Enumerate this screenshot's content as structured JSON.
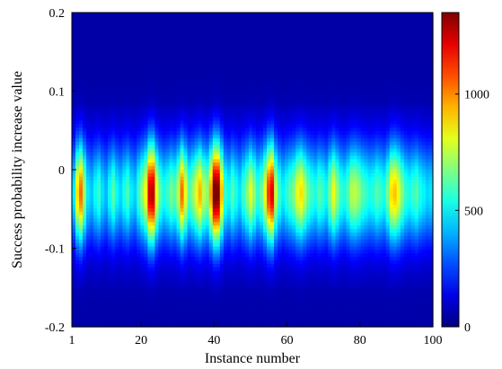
{
  "chart_data": {
    "type": "heatmap",
    "xlabel": "Instance number",
    "ylabel": "Success probability increase value",
    "xlim": [
      1,
      100
    ],
    "ylim": [
      -0.2,
      0.2
    ],
    "x_ticks": [
      "1",
      "20",
      "40",
      "60",
      "80",
      "100"
    ],
    "x_tick_values": [
      1,
      20,
      40,
      60,
      80,
      100
    ],
    "y_ticks": [
      "-0.2",
      "-0.1",
      "0",
      "0.1",
      "0.2"
    ],
    "y_tick_values": [
      -0.2,
      -0.1,
      0,
      0.1,
      0.2
    ],
    "colorbar": {
      "range": [
        0,
        1350
      ],
      "ticks": [
        "0",
        "500",
        "1000"
      ],
      "tick_values": [
        0,
        500,
        1000
      ],
      "colormap": "jet"
    },
    "distribution": {
      "center_y": -0.03,
      "spread_y": 0.045,
      "description_values": "per-instance peak count at the density centre"
    },
    "peaks": [
      {
        "x": 1,
        "value": 430
      },
      {
        "x": 2,
        "value": 820
      },
      {
        "x": 3,
        "value": 980
      },
      {
        "x": 4,
        "value": 650
      },
      {
        "x": 5,
        "value": 420
      },
      {
        "x": 6,
        "value": 380
      },
      {
        "x": 7,
        "value": 460
      },
      {
        "x": 8,
        "value": 520
      },
      {
        "x": 9,
        "value": 410
      },
      {
        "x": 10,
        "value": 360
      },
      {
        "x": 11,
        "value": 470
      },
      {
        "x": 12,
        "value": 560
      },
      {
        "x": 13,
        "value": 450
      },
      {
        "x": 14,
        "value": 400
      },
      {
        "x": 15,
        "value": 480
      },
      {
        "x": 16,
        "value": 540
      },
      {
        "x": 17,
        "value": 430
      },
      {
        "x": 18,
        "value": 390
      },
      {
        "x": 19,
        "value": 520
      },
      {
        "x": 20,
        "value": 640
      },
      {
        "x": 21,
        "value": 780
      },
      {
        "x": 22,
        "value": 1180
      },
      {
        "x": 23,
        "value": 1210
      },
      {
        "x": 24,
        "value": 760
      },
      {
        "x": 25,
        "value": 560
      },
      {
        "x": 26,
        "value": 480
      },
      {
        "x": 27,
        "value": 520
      },
      {
        "x": 28,
        "value": 600
      },
      {
        "x": 29,
        "value": 560
      },
      {
        "x": 30,
        "value": 700
      },
      {
        "x": 31,
        "value": 980
      },
      {
        "x": 32,
        "value": 760
      },
      {
        "x": 33,
        "value": 560
      },
      {
        "x": 34,
        "value": 640
      },
      {
        "x": 35,
        "value": 760
      },
      {
        "x": 36,
        "value": 880
      },
      {
        "x": 37,
        "value": 700
      },
      {
        "x": 38,
        "value": 640
      },
      {
        "x": 39,
        "value": 900
      },
      {
        "x": 40,
        "value": 1320
      },
      {
        "x": 41,
        "value": 1300
      },
      {
        "x": 42,
        "value": 860
      },
      {
        "x": 43,
        "value": 520
      },
      {
        "x": 44,
        "value": 460
      },
      {
        "x": 45,
        "value": 560
      },
      {
        "x": 46,
        "value": 480
      },
      {
        "x": 47,
        "value": 420
      },
      {
        "x": 48,
        "value": 520
      },
      {
        "x": 49,
        "value": 620
      },
      {
        "x": 50,
        "value": 760
      },
      {
        "x": 51,
        "value": 640
      },
      {
        "x": 52,
        "value": 520
      },
      {
        "x": 53,
        "value": 580
      },
      {
        "x": 54,
        "value": 760
      },
      {
        "x": 55,
        "value": 1060
      },
      {
        "x": 56,
        "value": 1160
      },
      {
        "x": 57,
        "value": 700
      },
      {
        "x": 58,
        "value": 520
      },
      {
        "x": 59,
        "value": 440
      },
      {
        "x": 60,
        "value": 500
      },
      {
        "x": 61,
        "value": 560
      },
      {
        "x": 62,
        "value": 620
      },
      {
        "x": 63,
        "value": 760
      },
      {
        "x": 64,
        "value": 820
      },
      {
        "x": 65,
        "value": 700
      },
      {
        "x": 66,
        "value": 580
      },
      {
        "x": 67,
        "value": 520
      },
      {
        "x": 68,
        "value": 480
      },
      {
        "x": 69,
        "value": 560
      },
      {
        "x": 70,
        "value": 520
      },
      {
        "x": 71,
        "value": 460
      },
      {
        "x": 72,
        "value": 620
      },
      {
        "x": 73,
        "value": 760
      },
      {
        "x": 74,
        "value": 640
      },
      {
        "x": 75,
        "value": 520
      },
      {
        "x": 76,
        "value": 480
      },
      {
        "x": 77,
        "value": 560
      },
      {
        "x": 78,
        "value": 680
      },
      {
        "x": 79,
        "value": 700
      },
      {
        "x": 80,
        "value": 640
      },
      {
        "x": 81,
        "value": 560
      },
      {
        "x": 82,
        "value": 520
      },
      {
        "x": 83,
        "value": 480
      },
      {
        "x": 84,
        "value": 500
      },
      {
        "x": 85,
        "value": 560
      },
      {
        "x": 86,
        "value": 520
      },
      {
        "x": 87,
        "value": 480
      },
      {
        "x": 88,
        "value": 600
      },
      {
        "x": 89,
        "value": 820
      },
      {
        "x": 90,
        "value": 860
      },
      {
        "x": 91,
        "value": 760
      },
      {
        "x": 92,
        "value": 620
      },
      {
        "x": 93,
        "value": 520
      },
      {
        "x": 94,
        "value": 480
      },
      {
        "x": 95,
        "value": 520
      },
      {
        "x": 96,
        "value": 560
      },
      {
        "x": 97,
        "value": 480
      },
      {
        "x": 98,
        "value": 440
      },
      {
        "x": 99,
        "value": 400
      },
      {
        "x": 100,
        "value": 420
      }
    ]
  }
}
